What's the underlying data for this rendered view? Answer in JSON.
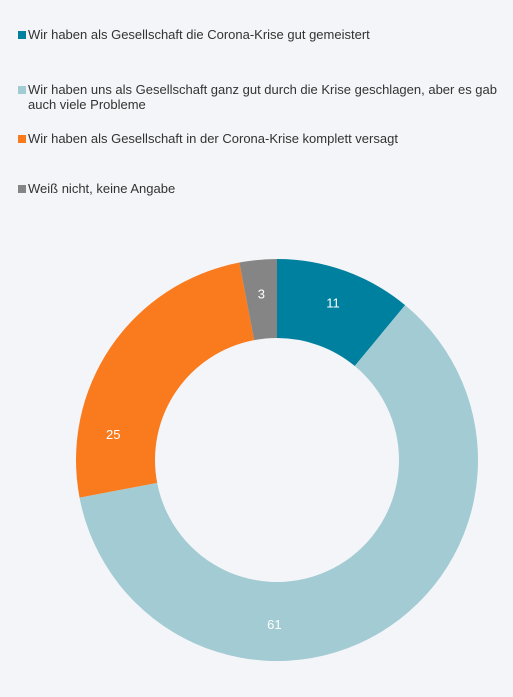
{
  "chart_data": {
    "type": "donut",
    "categories": [
      "Wir haben als Gesellschaft die Corona-Krise gut gemeistert",
      "Wir haben uns als Gesellschaft ganz gut durch die Krise geschlagen, aber es gab auch viele Probleme",
      "Wir haben als Gesellschaft in der Corona-Krise komplett versagt",
      "Weiß nicht, keine Angabe"
    ],
    "values": [
      11,
      61,
      25,
      3
    ],
    "colors": [
      "#00809f",
      "#a3cbd3",
      "#f97b1e",
      "#858585"
    ]
  }
}
